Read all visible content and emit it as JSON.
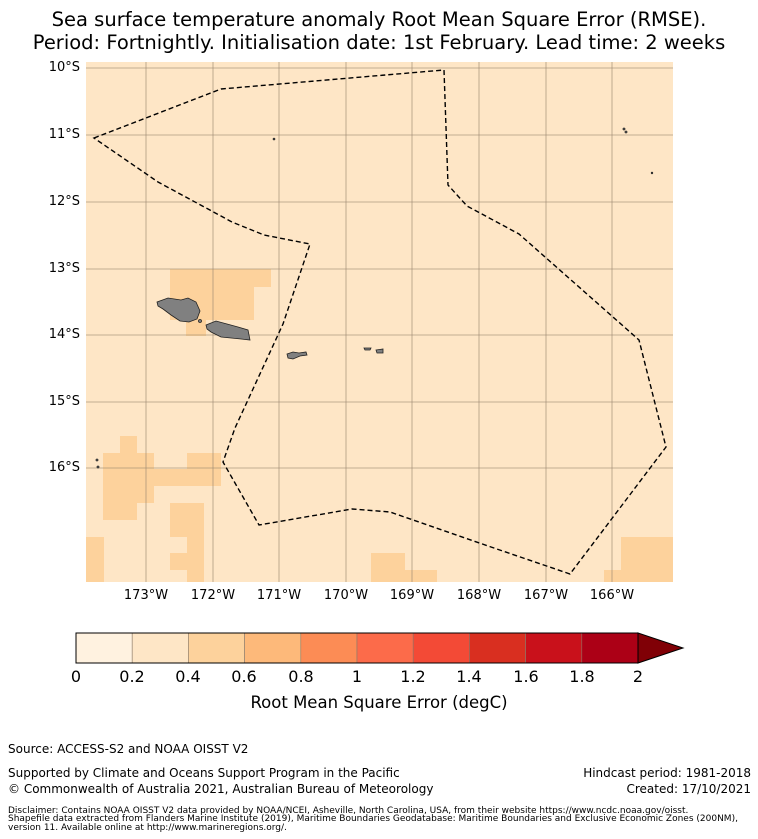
{
  "title": {
    "line1": "Sea surface temperature anomaly Root Mean Square Error (RMSE).",
    "line2": "Period: Fortnightly. Initialisation date: 1st February. Lead time: 2 weeks"
  },
  "map": {
    "lat_labels": [
      "10°S",
      "11°S",
      "12°S",
      "13°S",
      "14°S",
      "15°S",
      "16°S"
    ],
    "lon_labels": [
      "173°W",
      "172°W",
      "171°W",
      "170°W",
      "169°W",
      "168°W",
      "167°W",
      "166°W"
    ],
    "colors": {
      "background": "#fee6c6",
      "elevated": "#fdd29c",
      "land": "#808080",
      "boundary": "#000000"
    },
    "regions": [
      "Samoa",
      "American Samoa",
      "Tokelau boundary"
    ]
  },
  "colorbar": {
    "label": "Root Mean Square Error (degC)",
    "ticks": [
      "0",
      "0.2",
      "0.4",
      "0.6",
      "0.8",
      "1",
      "1.2",
      "1.4",
      "1.6",
      "1.8",
      "2"
    ],
    "tick_values": [
      0,
      0.2,
      0.4,
      0.6,
      0.8,
      1.0,
      1.2,
      1.4,
      1.6,
      1.8,
      2.0
    ],
    "colors": [
      "#fff2e0",
      "#fee6c6",
      "#fdd29c",
      "#fdb97a",
      "#fc8c55",
      "#fc6b4a",
      "#f34a36",
      "#d92f20",
      "#c9111b",
      "#ac0016"
    ],
    "extend_color": "#800006"
  },
  "footer": {
    "source": "Source: ACCESS-S2 and NOAA OISST V2",
    "support": "Supported by Climate and Oceans Support Program in the Pacific",
    "copyright": "© Commonwealth of Australia 2021, Australian Bureau of Meteorology",
    "hindcast": "Hindcast period: 1981-2018",
    "created": "Created: 17/10/2021",
    "disclaimer1": "Disclaimer: Contains NOAA OISST V2 data provided by NOAA/NCEI, Asheville, North Carolina, USA, from their website https://www.ncdc.noaa.gov/oisst.",
    "disclaimer2": "Shapefile data extracted from Flanders Marine Institute (2019), Maritime Boundaries Geodatabase: Maritime Boundaries and Exclusive Economic Zones (200NM),",
    "disclaimer3": "version 11. Available online at http://www.marineregions.org/."
  }
}
